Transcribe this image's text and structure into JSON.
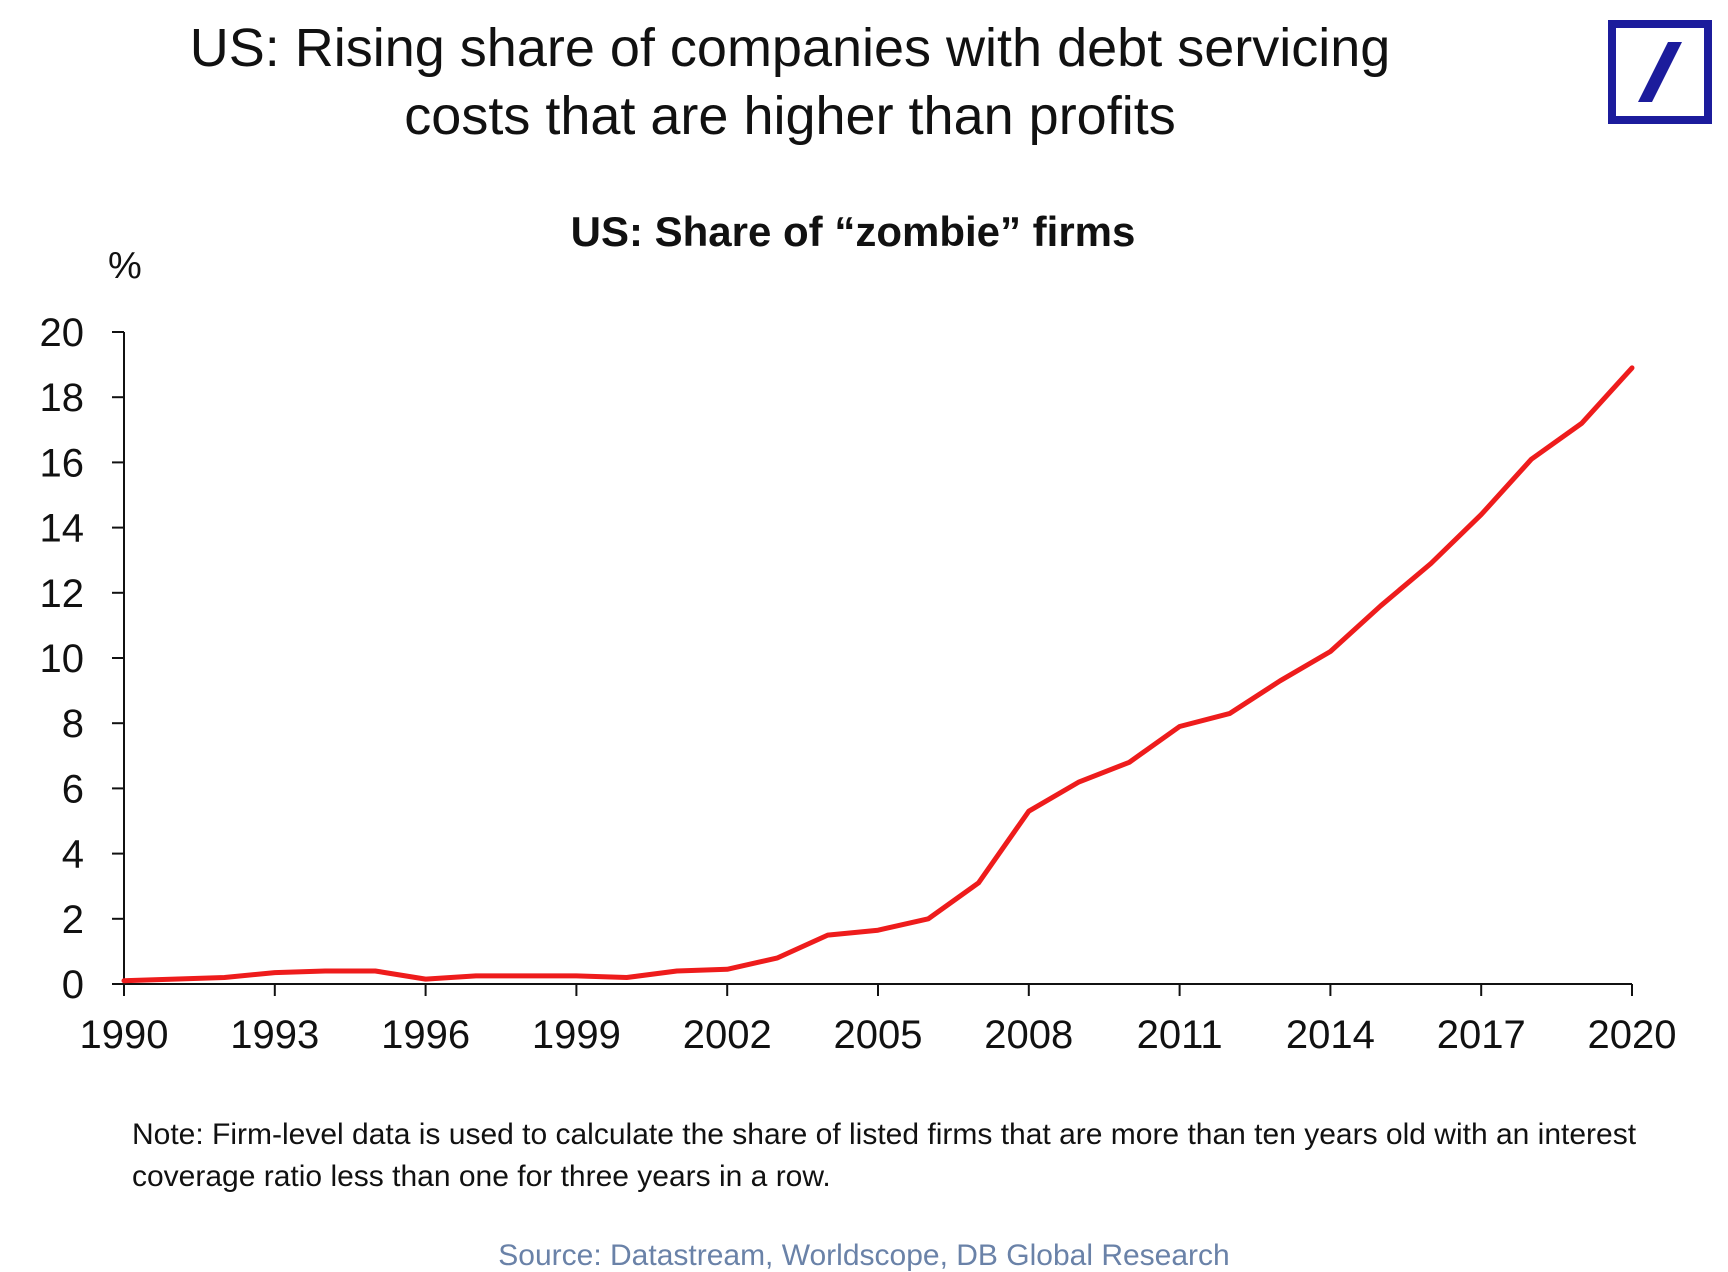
{
  "page": {
    "headline": "US: Rising share of companies with debt servicing costs that are higher than profits",
    "note": "Note: Firm-level data is used to calculate the share of listed firms that are more than ten years old with an interest coverage ratio less than one for three years in a row.",
    "source": "Source: Datastream, Worldscope, DB Global Research",
    "logo": {
      "icon": "deutsche-bank-logo",
      "color": "#1c1c9c"
    }
  },
  "chart_data": {
    "type": "line",
    "title": "US: Share of “zombie” firms",
    "ylabel": "%",
    "xlabel": "",
    "xlim": [
      1990,
      2020
    ],
    "ylim": [
      0,
      20
    ],
    "x_ticks": [
      "1990",
      "1993",
      "1996",
      "1999",
      "2002",
      "2005",
      "2008",
      "2011",
      "2014",
      "2017",
      "2020"
    ],
    "y_ticks": [
      "0",
      "2",
      "4",
      "6",
      "8",
      "10",
      "12",
      "14",
      "16",
      "18",
      "20"
    ],
    "grid": false,
    "legend": "none",
    "series": [
      {
        "color": "#ee1c1c",
        "x": [
          1990,
          1991,
          1992,
          1993,
          1994,
          1995,
          1996,
          1997,
          1998,
          1999,
          2000,
          2001,
          2002,
          2003,
          2004,
          2005,
          2006,
          2007,
          2008,
          2009,
          2010,
          2011,
          2012,
          2013,
          2014,
          2015,
          2016,
          2017,
          2018,
          2019,
          2020
        ],
        "values": [
          0.1,
          0.15,
          0.2,
          0.35,
          0.4,
          0.4,
          0.15,
          0.25,
          0.25,
          0.25,
          0.2,
          0.4,
          0.45,
          0.8,
          1.5,
          1.65,
          2.0,
          3.1,
          5.3,
          6.2,
          6.8,
          7.9,
          8.3,
          9.3,
          10.2,
          11.6,
          12.9,
          14.4,
          16.1,
          17.2,
          18.9
        ]
      }
    ]
  }
}
